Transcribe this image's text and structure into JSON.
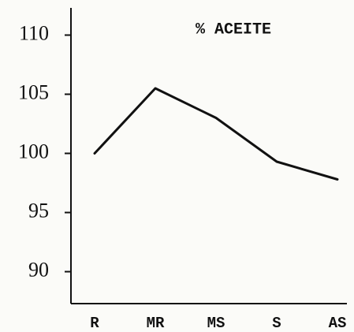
{
  "chart_data": {
    "type": "line",
    "title": "% ACEITE",
    "categories": [
      "R",
      "MR",
      "MS",
      "S",
      "AS"
    ],
    "series": [
      {
        "name": null,
        "color": "#111111",
        "values": [
          100,
          105.5,
          103,
          99.3,
          97.8
        ]
      }
    ],
    "ylim": [
      87.3,
      112.3
    ],
    "yticks": [
      90,
      95,
      100,
      105,
      110
    ],
    "grid": false
  }
}
